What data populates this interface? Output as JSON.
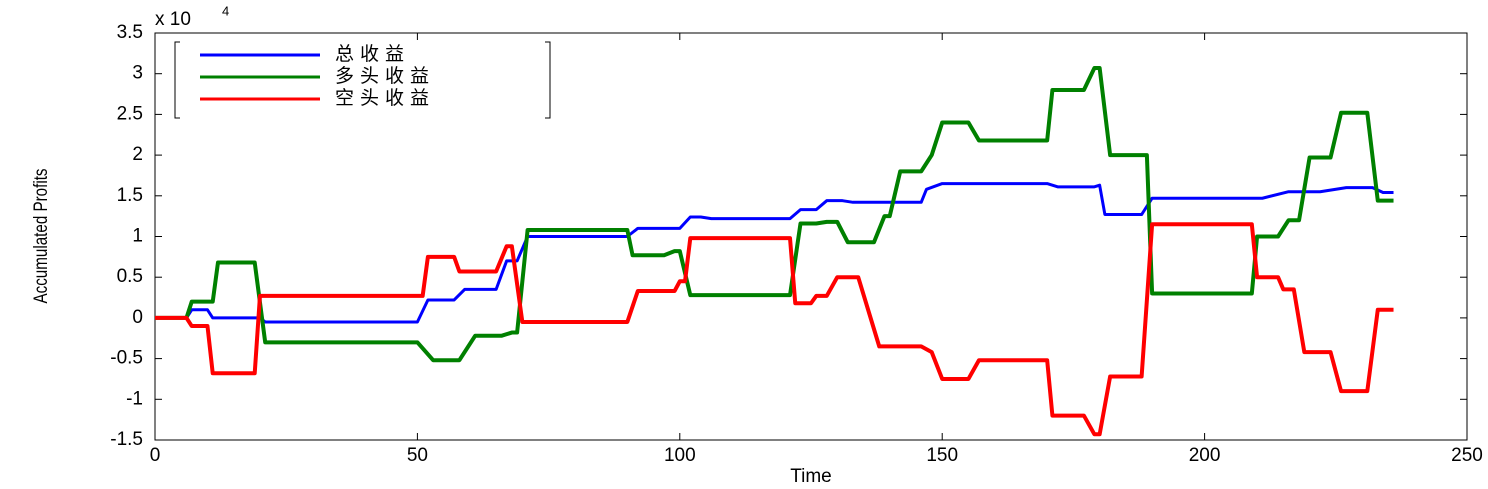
{
  "chart_data": {
    "type": "line",
    "xlabel": "Time",
    "ylabel": "Accumulated Profits",
    "y_multiplier": "x 10",
    "y_multiplier_exponent": "4",
    "xlim": [
      0,
      250
    ],
    "xticks": [
      0,
      50,
      100,
      150,
      200,
      250
    ],
    "ylim": [
      -1.5,
      3.5
    ],
    "yticks": [
      -1.5,
      -1,
      -0.5,
      0,
      0.5,
      1,
      1.5,
      2,
      2.5,
      3,
      3.5
    ],
    "legend": "upper left",
    "series": [
      {
        "name": "总收益",
        "color": "#0000ff",
        "width": 3,
        "x": [
          0,
          6,
          7,
          10,
          11,
          20,
          21,
          50,
          52,
          57,
          59,
          65,
          67,
          69,
          71,
          90,
          92,
          100,
          102,
          104,
          106,
          121,
          123,
          126,
          128,
          131,
          133,
          146,
          147,
          150,
          170,
          172,
          179,
          180,
          181,
          188,
          190,
          211,
          216,
          222,
          227,
          232,
          234,
          236
        ],
        "values": [
          0,
          0,
          0.1,
          0.1,
          0,
          0,
          -0.05,
          -0.05,
          0.22,
          0.22,
          0.35,
          0.35,
          0.7,
          0.7,
          1.0,
          1.0,
          1.1,
          1.1,
          1.24,
          1.24,
          1.22,
          1.22,
          1.33,
          1.33,
          1.44,
          1.44,
          1.42,
          1.42,
          1.58,
          1.65,
          1.65,
          1.61,
          1.61,
          1.63,
          1.27,
          1.27,
          1.47,
          1.47,
          1.55,
          1.55,
          1.6,
          1.6,
          1.54,
          1.54
        ]
      },
      {
        "name": "多头收益",
        "color": "#008000",
        "width": 4,
        "x": [
          0,
          6,
          7,
          11,
          12,
          19,
          21,
          50,
          53,
          58,
          61,
          66,
          68,
          69,
          71,
          90,
          91,
          97,
          99,
          100,
          102,
          121,
          123,
          126,
          128,
          130,
          132,
          137,
          139,
          140,
          142,
          146,
          148,
          150,
          155,
          157,
          170,
          171,
          177,
          179,
          180,
          182,
          189,
          190,
          209,
          210,
          214,
          216,
          218,
          220,
          224,
          226,
          231,
          233,
          236
        ],
        "values": [
          0,
          0,
          0.2,
          0.2,
          0.68,
          0.68,
          -0.3,
          -0.3,
          -0.52,
          -0.52,
          -0.22,
          -0.22,
          -0.18,
          -0.18,
          1.08,
          1.08,
          0.77,
          0.77,
          0.82,
          0.82,
          0.28,
          0.28,
          1.16,
          1.16,
          1.18,
          1.18,
          0.93,
          0.93,
          1.25,
          1.25,
          1.8,
          1.8,
          2.0,
          2.4,
          2.4,
          2.18,
          2.18,
          2.8,
          2.8,
          3.07,
          3.07,
          2.0,
          2.0,
          0.3,
          0.3,
          1.0,
          1.0,
          1.2,
          1.2,
          1.97,
          1.97,
          2.52,
          2.52,
          1.44,
          1.44
        ]
      },
      {
        "name": "空头收益",
        "color": "#ff0000",
        "width": 4,
        "x": [
          0,
          6,
          7,
          10,
          11,
          19,
          20,
          51,
          52,
          57,
          58,
          65,
          67,
          68,
          70,
          90,
          92,
          99,
          100,
          101,
          102,
          121,
          122,
          125,
          126,
          128,
          130,
          134,
          138,
          146,
          148,
          150,
          155,
          157,
          170,
          171,
          177,
          179,
          180,
          182,
          188,
          190,
          209,
          210,
          214,
          215,
          217,
          219,
          224,
          226,
          231,
          233,
          236
        ],
        "values": [
          0,
          0,
          -0.1,
          -0.1,
          -0.68,
          -0.68,
          0.27,
          0.27,
          0.75,
          0.75,
          0.57,
          0.57,
          0.88,
          0.88,
          -0.05,
          -0.05,
          0.33,
          0.33,
          0.45,
          0.45,
          0.98,
          0.98,
          0.18,
          0.18,
          0.27,
          0.27,
          0.5,
          0.5,
          -0.35,
          -0.35,
          -0.42,
          -0.75,
          -0.75,
          -0.52,
          -0.52,
          -1.2,
          -1.2,
          -1.43,
          -1.43,
          -0.72,
          -0.72,
          1.15,
          1.15,
          0.5,
          0.5,
          0.35,
          0.35,
          -0.42,
          -0.42,
          -0.9,
          -0.9,
          0.1,
          0.1
        ]
      }
    ]
  }
}
